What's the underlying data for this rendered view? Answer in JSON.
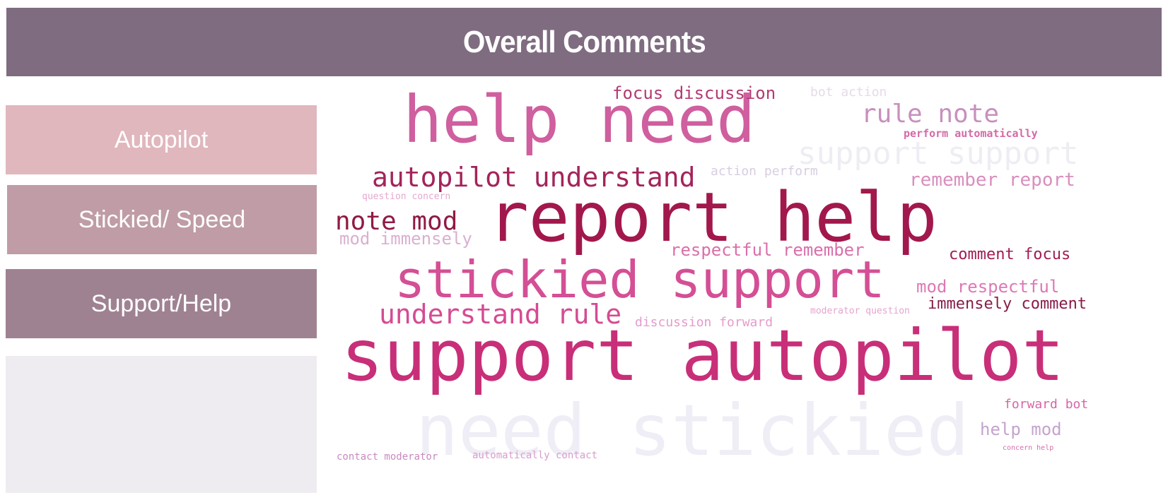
{
  "header": {
    "title": "Overall Comments"
  },
  "legend": [
    {
      "label": "Autopilot",
      "color": "#e0b7bd"
    },
    {
      "label": "Stickied/ Speed",
      "color": "#bf9ca6"
    },
    {
      "label": "Support/Help",
      "color": "#9f8291"
    },
    {
      "label": "",
      "color": "#eeecf0"
    }
  ],
  "word_cloud": {
    "words": [
      {
        "text": "help need",
        "color": "#cf5f9e"
      },
      {
        "text": "focus discussion",
        "color": "#b33a72"
      },
      {
        "text": "bot action",
        "color": "#e6dbe8"
      },
      {
        "text": "rule note",
        "color": "#c890bd"
      },
      {
        "text": "perform automatically",
        "color": "#d46aa6"
      },
      {
        "text": "support support",
        "color": "#eeedf3"
      },
      {
        "text": "autopilot understand",
        "color": "#a3245a"
      },
      {
        "text": "action perform",
        "color": "#d8cde2"
      },
      {
        "text": "remember report",
        "color": "#d98ebe"
      },
      {
        "text": "question concern",
        "color": "#e4a8cf"
      },
      {
        "text": "report help",
        "color": "#a2184c"
      },
      {
        "text": "note mod",
        "color": "#901a45"
      },
      {
        "text": "mod immensely",
        "color": "#d9b0d2"
      },
      {
        "text": "respectful remember",
        "color": "#da6fab"
      },
      {
        "text": "comment focus",
        "color": "#a01d52"
      },
      {
        "text": "stickied support",
        "color": "#d44f95"
      },
      {
        "text": "mod respectful",
        "color": "#dd78b5"
      },
      {
        "text": "understand rule",
        "color": "#d54b93"
      },
      {
        "text": "moderator question",
        "color": "#e3a6cf"
      },
      {
        "text": "immensely comment",
        "color": "#871c48"
      },
      {
        "text": "discussion forward",
        "color": "#e59bcb"
      },
      {
        "text": "support autopilot",
        "color": "#c82f78"
      },
      {
        "text": "forward bot",
        "color": "#d865a8"
      },
      {
        "text": "need stickied",
        "color": "#efedf5"
      },
      {
        "text": "help mod",
        "color": "#c4a4cd"
      },
      {
        "text": "concern help",
        "color": "#d66eaa"
      },
      {
        "text": "contact moderator",
        "color": "#c98ac0"
      },
      {
        "text": "automatically contact",
        "color": "#d99ccb"
      }
    ]
  }
}
